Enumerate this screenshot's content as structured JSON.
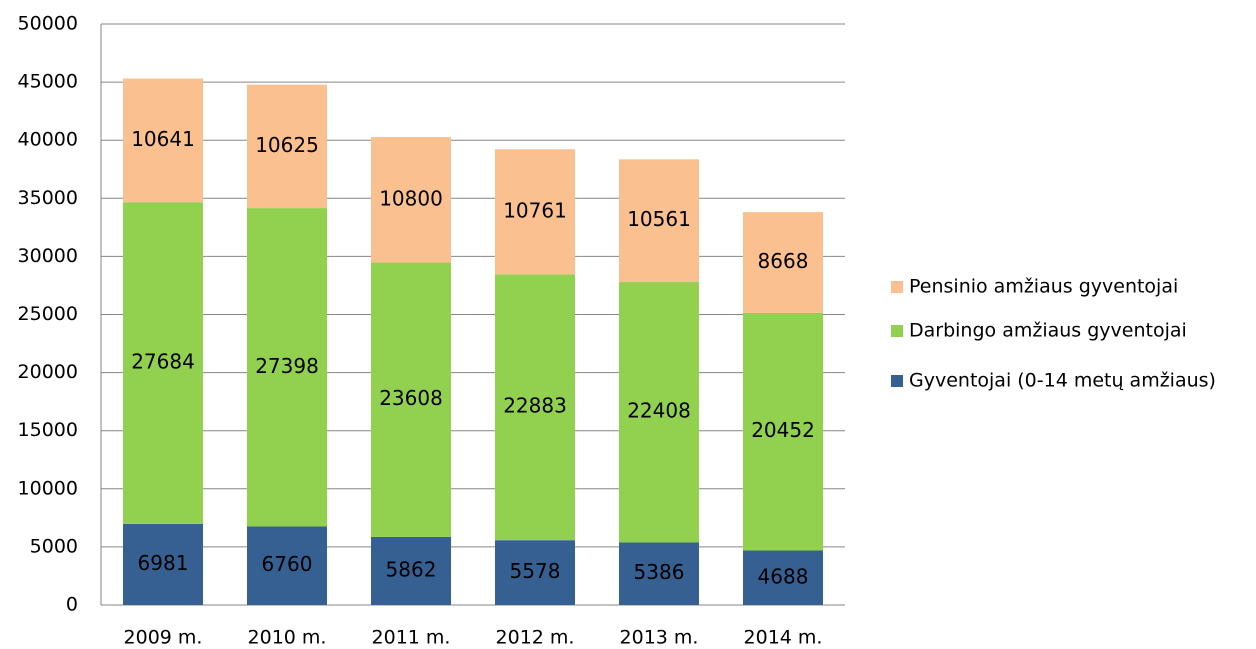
{
  "chart_data": {
    "type": "stacked_bar",
    "categories": [
      "2009 m.",
      "2010 m.",
      "2011 m.",
      "2012 m.",
      "2013 m.",
      "2014 m."
    ],
    "series": [
      {
        "name": "Gyventojai (0-14 metų amžiaus)",
        "color": "#366092",
        "values": [
          6981,
          6760,
          5862,
          5578,
          5386,
          4688
        ]
      },
      {
        "name": "Darbingo amžiaus gyventojai",
        "color": "#92d050",
        "values": [
          27684,
          27398,
          23608,
          22883,
          22408,
          20452
        ]
      },
      {
        "name": "Pensinio amžiaus gyventojai",
        "color": "#fac090",
        "values": [
          10641,
          10625,
          10800,
          10761,
          10561,
          8668
        ]
      }
    ],
    "ylim": [
      0,
      50000
    ],
    "yticks": [
      0,
      5000,
      10000,
      15000,
      20000,
      25000,
      30000,
      35000,
      40000,
      45000,
      50000
    ],
    "grid": true,
    "legend": "right"
  }
}
